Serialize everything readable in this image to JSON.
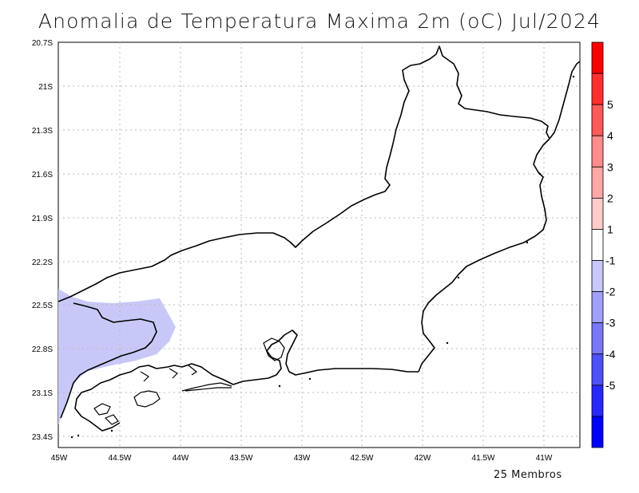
{
  "title": "Anomalia de Temperatura Maxima 2m (oC) Jul/2024",
  "footer": "25 Membros",
  "map": {
    "lat_ticks": [
      "20.7S",
      "21S",
      "21.3S",
      "21.6S",
      "21.9S",
      "22.2S",
      "22.5S",
      "22.8S",
      "23.1S",
      "23.4S"
    ],
    "lon_ticks": [
      "45W",
      "44.5W",
      "44W",
      "43.5W",
      "43W",
      "42.5W",
      "42W",
      "41.5W",
      "41W"
    ],
    "grid": true,
    "anomaly_field": {
      "region": "southwest",
      "class": "-1 to -2",
      "color": "#c8c8f8"
    }
  },
  "colorbar": {
    "labels": [
      "5",
      "4",
      "3",
      "2",
      "1",
      "-1",
      "-2",
      "-3",
      "-4",
      "-5"
    ],
    "colors": [
      "#ff0000",
      "#ff3030",
      "#ff5a5a",
      "#ff8c8c",
      "#ffa8a8",
      "#ffcccc",
      "#ffffff",
      "#c8c8f8",
      "#a0a0f8",
      "#7878f8",
      "#5050f8",
      "#2828f8",
      "#0000ff"
    ]
  }
}
